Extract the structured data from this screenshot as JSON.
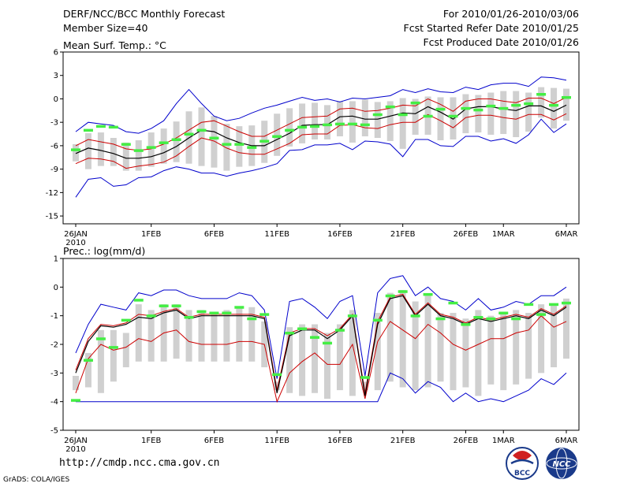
{
  "header": {
    "title": "DERF/NCC/BCC Monthly Forecast",
    "member_size": "Member Size=40",
    "period": "For 2010/01/26-2010/03/06",
    "started": "Fcst Started Refer Date 2010/01/25",
    "produced": "Fcst Produced Date 2010/01/26"
  },
  "footer": {
    "url": "http://cmdp.ncc.cma.gov.cn",
    "grads": "GrADS: COLA/IGES",
    "logo1_label": "BCC",
    "logo2_label": "NCC"
  },
  "colors": {
    "mean": "#000000",
    "spread": "#cc0000",
    "extreme": "#0000cc",
    "box": "#d0d0d0",
    "obs": "#44ee44"
  },
  "chart_data": [
    {
      "type": "line",
      "title": "Mean Surf. Temp.: °C",
      "xlabel": "",
      "ylabel": "",
      "ylim": [
        -16,
        6
      ],
      "yticks": [
        6,
        3,
        0,
        -3,
        -6,
        -9,
        -12,
        -15
      ],
      "xticks": [
        {
          "day": 0,
          "label": "26JAN",
          "label2": "2010"
        },
        {
          "day": 6,
          "label": "1FEB"
        },
        {
          "day": 11,
          "label": "6FEB"
        },
        {
          "day": 16,
          "label": "11FEB"
        },
        {
          "day": 21,
          "label": "16FEB"
        },
        {
          "day": 26,
          "label": "21FEB"
        },
        {
          "day": 31,
          "label": "26FEB"
        },
        {
          "day": 34,
          "label": "1MAR"
        },
        {
          "day": 39,
          "label": "6MAR"
        }
      ],
      "series": [
        {
          "name": "ensemble-mean",
          "values": [
            -7.0,
            -6.3,
            -6.6,
            -7.0,
            -7.6,
            -7.6,
            -7.4,
            -6.9,
            -6.1,
            -5.0,
            -4.0,
            -4.2,
            -5.0,
            -5.6,
            -6.0,
            -6.0,
            -5.2,
            -4.4,
            -3.4,
            -3.3,
            -3.3,
            -2.3,
            -2.2,
            -2.6,
            -2.6,
            -2.2,
            -1.8,
            -1.9,
            -1.0,
            -1.7,
            -2.6,
            -1.3,
            -1.0,
            -1.0,
            -1.3,
            -1.5,
            -0.9,
            -0.9,
            -1.6,
            -0.8
          ]
        },
        {
          "name": "upper-spread",
          "values": [
            -6.0,
            -5.2,
            -5.5,
            -5.8,
            -6.4,
            -6.6,
            -6.4,
            -5.8,
            -5.0,
            -4.0,
            -3.0,
            -2.8,
            -3.5,
            -4.2,
            -4.8,
            -4.8,
            -4.0,
            -3.2,
            -2.4,
            -2.3,
            -2.2,
            -1.3,
            -1.2,
            -1.6,
            -1.5,
            -1.2,
            -0.8,
            -0.9,
            0.0,
            -0.7,
            -1.6,
            -0.3,
            0.0,
            0.0,
            -0.3,
            -0.5,
            0.1,
            0.1,
            -0.6,
            0.2
          ]
        },
        {
          "name": "lower-spread",
          "values": [
            -8.3,
            -7.6,
            -7.7,
            -8.0,
            -8.9,
            -8.6,
            -8.4,
            -8.1,
            -7.3,
            -6.1,
            -5.0,
            -5.4,
            -6.3,
            -6.9,
            -7.1,
            -7.1,
            -6.4,
            -5.7,
            -4.6,
            -4.5,
            -4.5,
            -3.4,
            -3.3,
            -3.7,
            -3.8,
            -3.3,
            -3.0,
            -3.0,
            -2.0,
            -2.8,
            -3.7,
            -2.4,
            -2.1,
            -2.1,
            -2.4,
            -2.6,
            -2.0,
            -2.0,
            -2.7,
            -1.9
          ]
        },
        {
          "name": "member-max",
          "values": [
            -4.2,
            -3.0,
            -3.2,
            -3.4,
            -4.2,
            -4.4,
            -3.8,
            -2.8,
            -0.6,
            1.2,
            -0.6,
            -2.2,
            -2.8,
            -2.5,
            -1.8,
            -1.2,
            -0.8,
            -0.3,
            0.2,
            -0.2,
            0.0,
            -0.4,
            0.1,
            0.0,
            0.2,
            0.4,
            1.2,
            0.8,
            1.3,
            0.9,
            0.8,
            1.5,
            1.2,
            1.8,
            2.0,
            2.0,
            1.6,
            2.8,
            2.7,
            2.4
          ]
        },
        {
          "name": "member-min",
          "values": [
            -12.6,
            -10.3,
            -10.1,
            -11.2,
            -11.0,
            -10.1,
            -10.0,
            -9.2,
            -8.7,
            -9.0,
            -9.5,
            -9.5,
            -9.9,
            -9.5,
            -9.2,
            -8.8,
            -8.3,
            -6.6,
            -6.5,
            -5.9,
            -5.9,
            -5.7,
            -6.5,
            -5.4,
            -5.5,
            -5.8,
            -7.4,
            -5.2,
            -5.2,
            -6.0,
            -6.1,
            -4.8,
            -4.8,
            -5.4,
            -5.1,
            -5.7,
            -4.6,
            -2.6,
            -4.3,
            -3.2
          ]
        },
        {
          "name": "box-top",
          "values": [
            -5.8,
            -4.4,
            -4.3,
            -5.0,
            -5.6,
            -5.3,
            -4.3,
            -3.8,
            -2.9,
            -1.6,
            -1.1,
            -2.2,
            -3.2,
            -3.5,
            -3.4,
            -2.8,
            -1.9,
            -1.2,
            -0.6,
            -0.5,
            -0.8,
            -0.3,
            -0.3,
            -0.1,
            -0.4,
            -0.3,
            0.1,
            0.0,
            0.3,
            0.2,
            0.2,
            0.6,
            0.5,
            0.8,
            1.0,
            1.0,
            0.8,
            1.5,
            1.4,
            1.3
          ]
        },
        {
          "name": "box-bottom",
          "values": [
            -8.0,
            -9.0,
            -8.6,
            -8.6,
            -9.2,
            -9.2,
            -8.7,
            -8.3,
            -8.1,
            -8.3,
            -8.6,
            -8.8,
            -9.2,
            -8.7,
            -8.6,
            -8.2,
            -7.3,
            -6.1,
            -5.7,
            -5.2,
            -5.2,
            -4.8,
            -5.6,
            -4.8,
            -5.0,
            -5.4,
            -6.4,
            -4.6,
            -4.6,
            -5.3,
            -5.2,
            -4.4,
            -4.3,
            -4.6,
            -4.5,
            -4.9,
            -4.2,
            -2.4,
            -3.8,
            -2.8
          ]
        },
        {
          "name": "observed",
          "values": [
            -6.5,
            -4.0,
            -3.5,
            -3.6,
            -5.8,
            -6.6,
            -6.2,
            -5.6,
            -5.2,
            -4.5,
            -4.0,
            -5.0,
            -5.8,
            -5.8,
            -6.2,
            -5.4,
            -4.8,
            -4.0,
            -3.6,
            -3.5,
            -3.3,
            -3.2,
            -3.2,
            -3.3,
            -2.0,
            -1.0,
            -2.0,
            -0.5,
            -2.2,
            -1.3,
            -2.2,
            -1.2,
            -1.4,
            -0.9,
            -1.2,
            -0.8,
            -0.6,
            0.6,
            -0.8,
            0.2
          ]
        }
      ]
    },
    {
      "type": "line",
      "title": "Prec.: log(mm/d)",
      "xlabel": "",
      "ylabel": "",
      "ylim": [
        -5,
        1
      ],
      "yticks": [
        1,
        0,
        -1,
        -2,
        -3,
        -4,
        -5
      ],
      "xticks": [
        {
          "day": 0,
          "label": "26JAN",
          "label2": "2010"
        },
        {
          "day": 6,
          "label": "1FEB"
        },
        {
          "day": 11,
          "label": "6FEB"
        },
        {
          "day": 16,
          "label": "11FEB"
        },
        {
          "day": 21,
          "label": "16FEB"
        },
        {
          "day": 26,
          "label": "21FEB"
        },
        {
          "day": 31,
          "label": "26FEB"
        },
        {
          "day": 34,
          "label": "1MAR"
        },
        {
          "day": 39,
          "label": "6MAR"
        }
      ],
      "series": [
        {
          "name": "ensemble-mean",
          "values": [
            -3.0,
            -1.9,
            -1.35,
            -1.4,
            -1.3,
            -1.05,
            -1.1,
            -0.9,
            -0.8,
            -1.1,
            -1.0,
            -1.0,
            -1.0,
            -1.0,
            -1.0,
            -1.1,
            -3.7,
            -1.7,
            -1.5,
            -1.5,
            -1.8,
            -1.5,
            -1.0,
            -3.8,
            -1.3,
            -0.4,
            -0.3,
            -1.0,
            -0.6,
            -1.0,
            -1.1,
            -1.3,
            -1.1,
            -1.2,
            -1.1,
            -1.0,
            -1.1,
            -0.8,
            -1.0,
            -0.7
          ]
        },
        {
          "name": "upper-spread",
          "values": [
            -2.9,
            -1.8,
            -1.3,
            -1.35,
            -1.25,
            -0.95,
            -1.0,
            -0.85,
            -0.75,
            -1.05,
            -0.95,
            -0.95,
            -0.95,
            -0.95,
            -0.95,
            -1.05,
            -3.6,
            -1.6,
            -1.45,
            -1.45,
            -1.7,
            -1.45,
            -0.95,
            -3.7,
            -1.2,
            -0.35,
            -0.25,
            -0.95,
            -0.55,
            -0.95,
            -1.05,
            -1.25,
            -1.05,
            -1.15,
            -1.05,
            -0.95,
            -1.05,
            -0.75,
            -0.95,
            -0.65
          ]
        },
        {
          "name": "lower-spread",
          "values": [
            -3.7,
            -2.5,
            -2.0,
            -2.2,
            -2.1,
            -1.8,
            -1.9,
            -1.6,
            -1.5,
            -1.9,
            -2.0,
            -2.0,
            -2.0,
            -1.9,
            -1.9,
            -2.0,
            -4.0,
            -3.0,
            -2.6,
            -2.3,
            -2.7,
            -2.7,
            -2.0,
            -3.9,
            -1.9,
            -1.2,
            -1.5,
            -1.8,
            -1.3,
            -1.6,
            -2.0,
            -2.2,
            -2.0,
            -1.8,
            -1.8,
            -1.6,
            -1.5,
            -1.0,
            -1.4,
            -1.2
          ]
        },
        {
          "name": "member-max",
          "values": [
            -2.3,
            -1.3,
            -0.6,
            -0.7,
            -0.8,
            -0.2,
            -0.3,
            -0.1,
            -0.1,
            -0.3,
            -0.4,
            -0.4,
            -0.4,
            -0.2,
            -0.3,
            -0.8,
            -3.2,
            -0.5,
            -0.4,
            -0.7,
            -1.1,
            -0.5,
            -0.3,
            -3.1,
            -0.2,
            0.3,
            0.4,
            -0.3,
            0.0,
            -0.4,
            -0.5,
            -0.8,
            -0.4,
            -0.8,
            -0.7,
            -0.5,
            -0.6,
            -0.3,
            -0.3,
            0.0
          ]
        },
        {
          "name": "member-min",
          "values": [
            -4.0,
            -4.0,
            -4.0,
            -4.0,
            -4.0,
            -4.0,
            -4.0,
            -4.0,
            -4.0,
            -4.0,
            -4.0,
            -4.0,
            -4.0,
            -4.0,
            -4.0,
            -4.0,
            -4.0,
            -4.0,
            -4.0,
            -4.0,
            -4.0,
            -4.0,
            -4.0,
            -4.0,
            -4.0,
            -3.0,
            -3.2,
            -3.7,
            -3.3,
            -3.5,
            -4.0,
            -3.7,
            -4.0,
            -3.9,
            -4.0,
            -3.8,
            -3.6,
            -3.2,
            -3.4,
            -3.0
          ]
        },
        {
          "name": "box-top",
          "values": [
            -3.1,
            -2.3,
            -1.5,
            -1.5,
            -1.6,
            -0.6,
            -0.8,
            -0.6,
            -0.6,
            -0.8,
            -0.8,
            -0.9,
            -0.8,
            -0.7,
            -0.7,
            -1.2,
            -3.3,
            -1.4,
            -1.3,
            -1.3,
            -1.6,
            -1.3,
            -0.8,
            -3.3,
            -0.9,
            -0.2,
            -0.1,
            -0.5,
            -0.3,
            -0.9,
            -0.9,
            -1.1,
            -0.8,
            -1.0,
            -0.9,
            -0.8,
            -0.9,
            -0.6,
            -0.6,
            -0.4
          ]
        },
        {
          "name": "box-bottom",
          "values": [
            -3.6,
            -3.5,
            -3.7,
            -3.3,
            -2.8,
            -2.6,
            -2.6,
            -2.6,
            -2.5,
            -2.6,
            -2.6,
            -2.6,
            -2.6,
            -2.6,
            -2.6,
            -2.8,
            -3.6,
            -3.7,
            -3.8,
            -3.7,
            -3.9,
            -3.6,
            -3.8,
            -3.6,
            -3.6,
            -3.3,
            -3.5,
            -3.6,
            -3.5,
            -3.3,
            -3.6,
            -3.5,
            -3.8,
            -3.4,
            -3.6,
            -3.4,
            -3.2,
            -3.0,
            -2.8,
            -2.5
          ]
        },
        {
          "name": "observed",
          "values": [
            -3.95,
            -2.55,
            -1.8,
            -2.1,
            -1.15,
            -0.45,
            -1.0,
            -0.65,
            -0.65,
            -1.05,
            -0.85,
            -0.9,
            -0.9,
            -0.7,
            -1.1,
            -0.95,
            -3.05,
            -1.6,
            -1.45,
            -1.75,
            -1.95,
            -1.5,
            -1.0,
            -3.15,
            -1.15,
            -0.3,
            -0.15,
            -1.0,
            -0.25,
            -1.1,
            -0.55,
            -1.3,
            -1.05,
            -1.1,
            -0.9,
            -1.1,
            -0.6,
            -0.95,
            -0.6,
            -0.55
          ]
        }
      ]
    }
  ]
}
